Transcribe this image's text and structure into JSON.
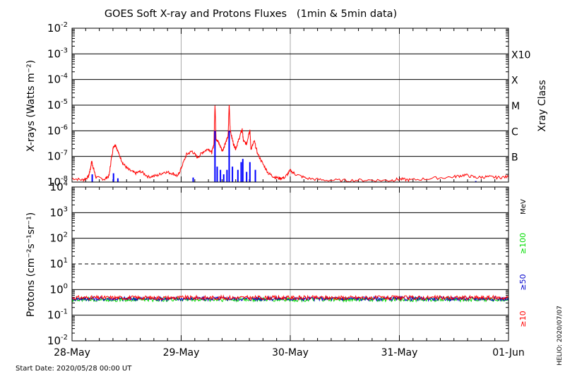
{
  "chart_data": [
    {
      "type": "line",
      "title": "GOES Soft X-ray and Protons Fluxes   (1min & 5min data)",
      "ylabel": "X-rays (Watts m⁻²)",
      "y_scale": "log",
      "ylim": [
        1e-08,
        0.01
      ],
      "y_ticks": [
        {
          "base": "10",
          "exp": "-2"
        },
        {
          "base": "10",
          "exp": "-3"
        },
        {
          "base": "10",
          "exp": "-4"
        },
        {
          "base": "10",
          "exp": "-5"
        },
        {
          "base": "10",
          "exp": "-6"
        },
        {
          "base": "10",
          "exp": "-7"
        },
        {
          "base": "10",
          "exp": "-8"
        }
      ],
      "right_axis_label": "Xray Class",
      "class_labels": [
        {
          "label": "X10",
          "value": 0.001
        },
        {
          "label": "X",
          "value": 0.0001
        },
        {
          "label": "M",
          "value": 1e-05
        },
        {
          "label": "C",
          "value": 1e-06
        },
        {
          "label": "B",
          "value": 1e-07
        }
      ],
      "x_range_days": [
        0,
        4
      ],
      "series": [
        {
          "color": "#ff0000",
          "points": [
            [
              0.0,
              1.4e-08
            ],
            [
              0.1,
              1.2e-08
            ],
            [
              0.15,
              1.6e-08
            ],
            [
              0.17,
              3.5e-08
            ],
            [
              0.18,
              6.5e-08
            ],
            [
              0.2,
              3e-08
            ],
            [
              0.22,
              1.5e-08
            ],
            [
              0.3,
              1.3e-08
            ],
            [
              0.34,
              1.8e-08
            ],
            [
              0.36,
              8e-08
            ],
            [
              0.38,
              2.5e-07
            ],
            [
              0.4,
              2.8e-07
            ],
            [
              0.43,
              1.2e-07
            ],
            [
              0.47,
              5e-08
            ],
            [
              0.52,
              3e-08
            ],
            [
              0.58,
              2.2e-08
            ],
            [
              0.63,
              2.6e-08
            ],
            [
              0.7,
              1.6e-08
            ],
            [
              0.78,
              1.8e-08
            ],
            [
              0.85,
              2.5e-08
            ],
            [
              0.92,
              2.2e-08
            ],
            [
              0.97,
              1.7e-08
            ],
            [
              1.0,
              3.5e-08
            ],
            [
              1.05,
              1.2e-07
            ],
            [
              1.1,
              1.6e-07
            ],
            [
              1.15,
              9e-08
            ],
            [
              1.2,
              1.5e-07
            ],
            [
              1.25,
              2e-07
            ],
            [
              1.28,
              1.4e-07
            ],
            [
              1.3,
              3e-07
            ],
            [
              1.31,
              1.1e-05
            ],
            [
              1.32,
              5e-07
            ],
            [
              1.35,
              3e-07
            ],
            [
              1.38,
              1.6e-07
            ],
            [
              1.4,
              3e-07
            ],
            [
              1.43,
              6e-07
            ],
            [
              1.44,
              1.1e-05
            ],
            [
              1.45,
              1e-06
            ],
            [
              1.48,
              3e-07
            ],
            [
              1.5,
              2e-07
            ],
            [
              1.52,
              3.5e-07
            ],
            [
              1.55,
              9e-07
            ],
            [
              1.56,
              1.1e-06
            ],
            [
              1.57,
              4e-07
            ],
            [
              1.6,
              3e-07
            ],
            [
              1.62,
              8e-07
            ],
            [
              1.63,
              1e-06
            ],
            [
              1.64,
              1.8e-07
            ],
            [
              1.67,
              4e-07
            ],
            [
              1.7,
              1.3e-07
            ],
            [
              1.75,
              5e-08
            ],
            [
              1.8,
              2.2e-08
            ],
            [
              1.85,
              1.6e-08
            ],
            [
              1.9,
              1.4e-08
            ],
            [
              1.95,
              1.5e-08
            ],
            [
              2.0,
              2.8e-08
            ],
            [
              2.05,
              2e-08
            ],
            [
              2.15,
              1.4e-08
            ],
            [
              2.3,
              1.2e-08
            ],
            [
              2.5,
              1.15e-08
            ],
            [
              2.7,
              1.2e-08
            ],
            [
              2.9,
              1.15e-08
            ],
            [
              3.0,
              1.3e-08
            ],
            [
              3.1,
              1.2e-08
            ],
            [
              3.3,
              1.4e-08
            ],
            [
              3.5,
              1.6e-08
            ],
            [
              3.6,
              1.9e-08
            ],
            [
              3.7,
              1.5e-08
            ],
            [
              3.8,
              1.6e-08
            ],
            [
              3.9,
              1.5e-08
            ],
            [
              4.0,
              1.6e-08
            ]
          ]
        },
        {
          "color": "#0000ff",
          "spikes": [
            [
              0.185,
              2e-08
            ],
            [
              0.38,
              2.2e-08
            ],
            [
              0.42,
              1.4e-08
            ],
            [
              1.11,
              1.5e-08
            ],
            [
              1.31,
              1e-06
            ],
            [
              1.33,
              4e-08
            ],
            [
              1.36,
              3e-08
            ],
            [
              1.39,
              2e-08
            ],
            [
              1.42,
              3e-08
            ],
            [
              1.44,
              1e-06
            ],
            [
              1.47,
              4e-08
            ],
            [
              1.52,
              3e-08
            ],
            [
              1.55,
              6e-08
            ],
            [
              1.565,
              8e-08
            ],
            [
              1.6,
              2.5e-08
            ],
            [
              1.63,
              6e-08
            ],
            [
              1.68,
              3e-08
            ],
            [
              3.7,
              1.1e-08
            ]
          ]
        }
      ]
    },
    {
      "type": "line",
      "ylabel": "Protons (cm⁻²s⁻¹sr⁻¹)",
      "y_scale": "log",
      "ylim": [
        0.01,
        10000.0
      ],
      "y_ticks": [
        {
          "base": "10",
          "exp": "4"
        },
        {
          "base": "10",
          "exp": "3"
        },
        {
          "base": "10",
          "exp": "2"
        },
        {
          "base": "10",
          "exp": "1"
        },
        {
          "base": "10",
          "exp": "0"
        },
        {
          "base": "10",
          "exp": "-1"
        },
        {
          "base": "10",
          "exp": "-2"
        }
      ],
      "threshold": 10,
      "x_range_days": [
        0,
        4
      ],
      "x_tick_labels": [
        "28-May",
        "29-May",
        "30-May",
        "31-May",
        "01-Jun"
      ],
      "unit_label": "MeV",
      "series": [
        {
          "name": "≥10",
          "color": "#ff0000",
          "mean": 0.48
        },
        {
          "name": "≥50",
          "color": "#0000cc",
          "mean": 0.44
        },
        {
          "name": "≥100",
          "color": "#00dd00",
          "mean": 0.41
        }
      ]
    }
  ],
  "footer": {
    "start_date": "Start Date: 2020/05/28 00:00 UT",
    "credit": "HELIO: 2020/07/07"
  }
}
